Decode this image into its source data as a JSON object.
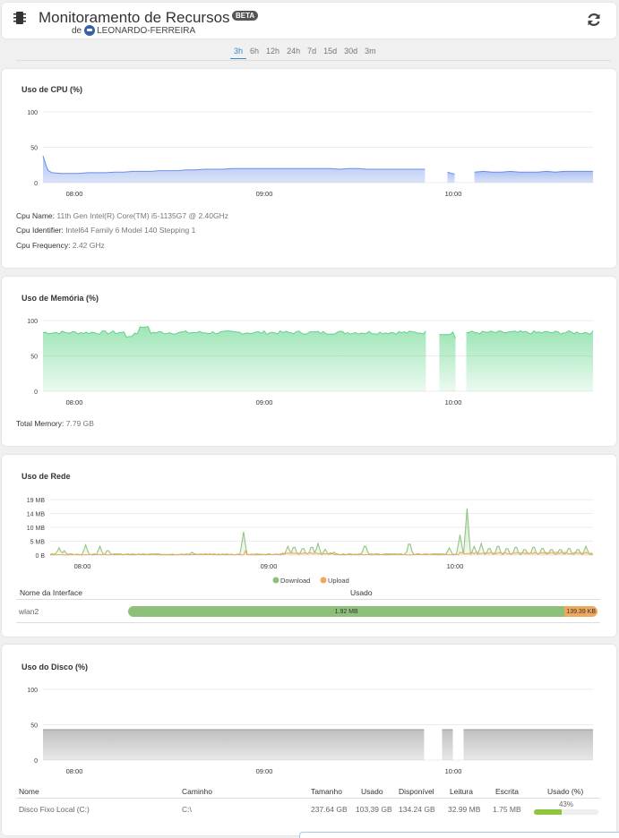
{
  "header": {
    "title": "Monitoramento de Recursos",
    "badge": "BETA",
    "owner_prefix": "de",
    "owner_name": "LEONARDO-FERREIRA"
  },
  "tabs": [
    {
      "label": "3h",
      "active": true
    },
    {
      "label": "6h",
      "active": false
    },
    {
      "label": "12h",
      "active": false
    },
    {
      "label": "24h",
      "active": false
    },
    {
      "label": "7d",
      "active": false
    },
    {
      "label": "15d",
      "active": false
    },
    {
      "label": "30d",
      "active": false
    },
    {
      "label": "3m",
      "active": false
    }
  ],
  "cpu": {
    "title": "Uso de CPU (%)",
    "name_label": "Cpu Name:",
    "name_value": "11th Gen Intel(R) Core(TM) i5-1135G7 @ 2.40GHz",
    "identifier_label": "Cpu Identifier:",
    "identifier_value": "Intel64 Family 6 Model 140 Stepping 1",
    "frequency_label": "Cpu Frequency:",
    "frequency_value": "2.42 GHz"
  },
  "memory": {
    "title": "Uso de Memória (%)",
    "total_label": "Total Memory:",
    "total_value": "7.79 GB"
  },
  "network": {
    "title": "Uso de Rede",
    "legend_download": "Download",
    "legend_upload": "Upload",
    "col_interface": "Nome da Interface",
    "col_used": "Usado",
    "interface_name": "wlan2",
    "download_value": "1.92 MB",
    "upload_value": "139.39 KB",
    "download_share": 0.93
  },
  "disk": {
    "title": "Uso do Disco (%)",
    "columns": [
      "Nome",
      "Caminho",
      "Tamanho",
      "Usado",
      "Disponível",
      "Leitura",
      "Escrita",
      "Usado (%)"
    ],
    "row": {
      "name": "Disco Fixo Local (C:)",
      "path": "C:\\",
      "size": "237.64 GB",
      "used": "103.39 GB",
      "available": "134.24 GB",
      "read": "32.99 MB",
      "write": "1.75 MB",
      "used_pct_label": "43%",
      "used_pct": 43
    }
  },
  "chart_data": [
    {
      "type": "area",
      "title": "Uso de CPU (%)",
      "x_ticks": [
        "08:00",
        "09:00",
        "10:00"
      ],
      "y_ticks": [
        "0",
        "50",
        "100"
      ],
      "ylim": [
        0,
        100
      ],
      "color": "#6b8fe6",
      "x": [
        0,
        2,
        4,
        6,
        10,
        20,
        30,
        40,
        50,
        60,
        70,
        80,
        90,
        100,
        110,
        120,
        130,
        140,
        150,
        160,
        170,
        180,
        190,
        200,
        210,
        220,
        230,
        240,
        250,
        260,
        270,
        280,
        290,
        300,
        310,
        320,
        330,
        340,
        350,
        360,
        370,
        380,
        390,
        400,
        410,
        420,
        425,
        428,
        440,
        450,
        455,
        458,
        462,
        470,
        480,
        490,
        500,
        510,
        520,
        530,
        540,
        550,
        560,
        570,
        580,
        590,
        600,
        612
      ],
      "values": [
        38,
        30,
        22,
        17,
        14,
        13,
        13,
        13,
        14,
        14,
        14,
        15,
        15,
        16,
        16,
        16,
        17,
        17,
        17,
        18,
        18,
        19,
        19,
        19,
        20,
        20,
        20,
        20,
        20,
        20,
        20,
        20,
        20,
        20,
        20,
        20,
        19,
        20,
        20,
        19,
        19,
        19,
        19,
        19,
        19,
        19,
        19,
        null,
        null,
        15,
        13,
        12,
        null,
        null,
        15,
        16,
        15,
        15,
        16,
        15,
        15,
        15,
        16,
        15,
        16,
        16,
        16,
        16
      ]
    },
    {
      "type": "area",
      "title": "Uso de Memória (%)",
      "x_ticks": [
        "08:00",
        "09:00",
        "10:00"
      ],
      "y_ticks": [
        "0",
        "50",
        "100"
      ],
      "ylim": [
        0,
        100
      ],
      "color": "#5ed486"
    },
    {
      "type": "area",
      "title": "Uso de Rede",
      "x_ticks": [
        "08:00",
        "09:00",
        "10:00"
      ],
      "y_ticks": [
        "0 B",
        "5 MB",
        "10 MB",
        "14 MB",
        "19 MB"
      ],
      "ylim": [
        0,
        19
      ],
      "series": [
        {
          "name": "Download",
          "color": "#8fc07a"
        },
        {
          "name": "Upload",
          "color": "#f0a85c"
        }
      ]
    },
    {
      "type": "area",
      "title": "Uso do Disco (%)",
      "x_ticks": [
        "08:00",
        "09:00",
        "10:00"
      ],
      "y_ticks": [
        "0",
        "50",
        "100"
      ],
      "ylim": [
        0,
        100
      ],
      "color": "#9a9a9a"
    }
  ]
}
